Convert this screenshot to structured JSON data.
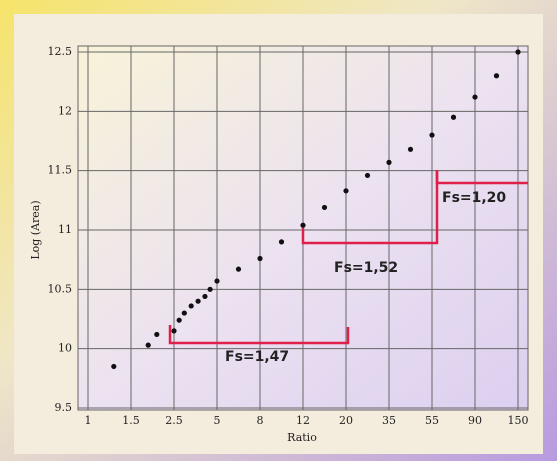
{
  "chart_data": {
    "type": "scatter",
    "x_label": "Ratio",
    "y_label": "Log (Area)",
    "x": [
      1.3,
      1.9,
      2.1,
      2.5,
      2.8,
      3.1,
      3.5,
      3.9,
      4.3,
      4.6,
      5,
      6.5,
      8,
      10,
      12,
      16,
      20,
      27.5,
      35,
      45,
      55,
      72.5,
      90,
      120,
      150
    ],
    "values": [
      9.85,
      10.03,
      10.12,
      10.15,
      10.24,
      10.3,
      10.36,
      10.4,
      10.44,
      10.5,
      10.57,
      10.67,
      10.76,
      10.9,
      11.04,
      11.19,
      11.33,
      11.46,
      11.57,
      11.68,
      11.8,
      11.95,
      12.12,
      12.3,
      12.5
    ],
    "color": "#111111",
    "xlim": [
      1,
      150
    ],
    "xticks": [
      1,
      1.5,
      2.5,
      5,
      8,
      12,
      20,
      35,
      55,
      90,
      150
    ],
    "ylim": [
      9.5,
      12.5
    ],
    "yticks": [
      9.5,
      10,
      10.5,
      11,
      11.5,
      12,
      12.5
    ],
    "grid": true,
    "annotations": [
      "Fs=1,47",
      "Fs=1,52",
      "Fs=1,20"
    ]
  }
}
